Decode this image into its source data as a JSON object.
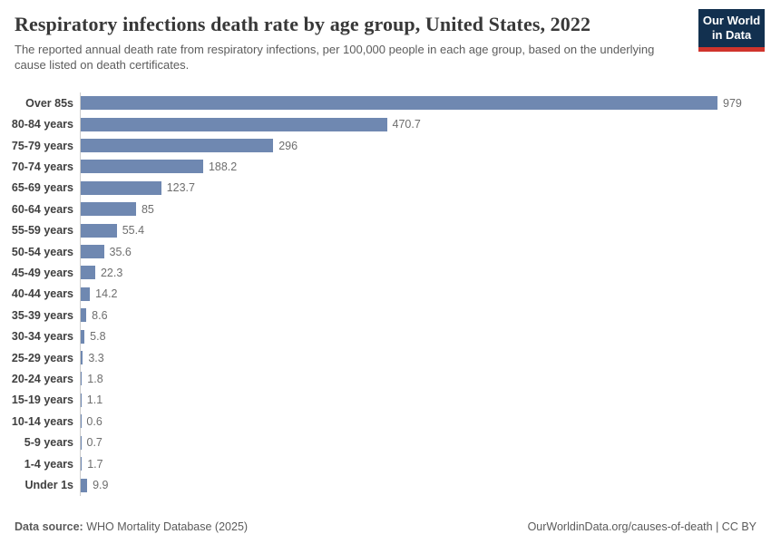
{
  "header": {
    "title": "Respiratory infections death rate by age group, United States, 2022",
    "subtitle": "The reported annual death rate from respiratory infections, per 100,000 people in each age group, based on the underlying cause listed on death certificates.",
    "logo": {
      "line1": "Our World",
      "line2": "in Data"
    }
  },
  "chart_data": {
    "type": "bar",
    "orientation": "horizontal",
    "title": "Respiratory infections death rate by age group, United States, 2022",
    "xlabel": "",
    "ylabel": "",
    "xlim": [
      0,
      979
    ],
    "grid": false,
    "legend": false,
    "categories": [
      "Over 85s",
      "80-84 years",
      "75-79 years",
      "70-74 years",
      "65-69 years",
      "60-64 years",
      "55-59 years",
      "50-54 years",
      "45-49 years",
      "40-44 years",
      "35-39 years",
      "30-34 years",
      "25-29 years",
      "20-24 years",
      "15-19 years",
      "10-14 years",
      "5-9 years",
      "1-4 years",
      "Under 1s"
    ],
    "values": [
      979,
      470.7,
      296,
      188.2,
      123.7,
      85,
      55.4,
      35.6,
      22.3,
      14.2,
      8.6,
      5.8,
      3.3,
      1.8,
      1.1,
      0.6,
      0.7,
      1.7,
      9.9
    ],
    "value_labels": [
      "979",
      "470.7",
      "296",
      "188.2",
      "123.7",
      "85",
      "55.4",
      "35.6",
      "22.3",
      "14.2",
      "8.6",
      "5.8",
      "3.3",
      "1.8",
      "1.1",
      "0.6",
      "0.7",
      "1.7",
      "9.9"
    ],
    "bar_color": "#6f88b1"
  },
  "footer": {
    "datasource_label": "Data source:",
    "datasource_value": "WHO Mortality Database (2025)",
    "link": "OurWorldinData.org/causes-of-death | CC BY"
  },
  "colors": {
    "bar": "#6f88b1",
    "title_text": "#383838",
    "subtitle_text": "#5c5c5c",
    "category_text": "#404040",
    "value_text": "#6e6e6e",
    "axis_line": "#cccccc",
    "logo_bg": "#12304f",
    "logo_stripe": "#d0342c"
  }
}
